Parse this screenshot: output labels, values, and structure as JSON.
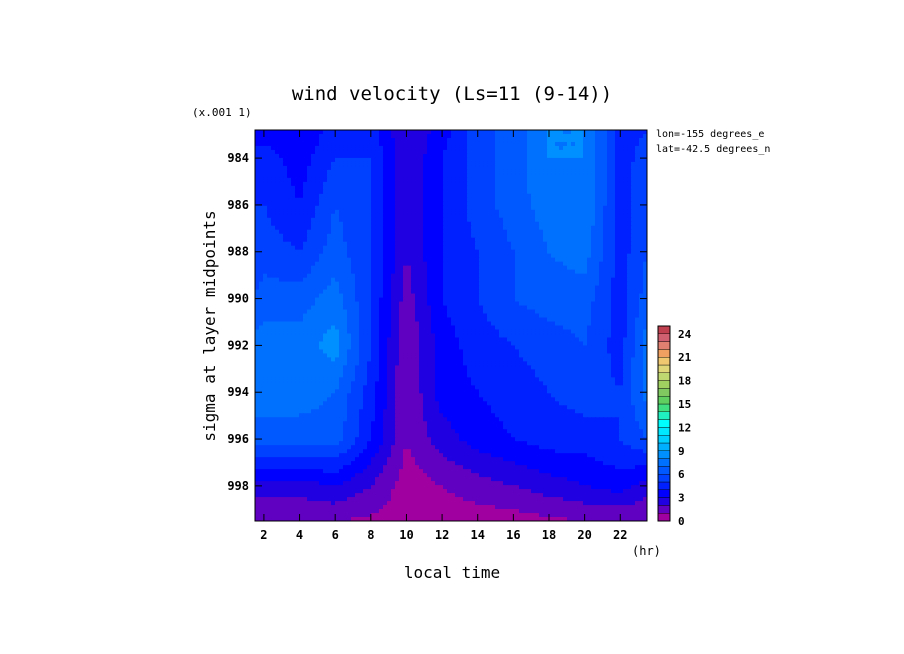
{
  "chart_data": {
    "type": "heatmap",
    "title": "wind velocity (Ls=11 (9-14))",
    "xlabel": "local time",
    "ylabel": "sigma at layer midpoints",
    "x_unit": "(hr)",
    "y_scale_note": "(x.001 1)",
    "annotations": [
      "lon=-155 degrees_e",
      "lat=-42.5 degrees_n"
    ],
    "xlim": [
      1.5,
      23.5
    ],
    "ylim": [
      999.5,
      982.8
    ],
    "x_ticks": [
      2,
      4,
      6,
      8,
      10,
      12,
      14,
      16,
      18,
      20,
      22
    ],
    "y_ticks": [
      984,
      986,
      988,
      990,
      992,
      994,
      996,
      998
    ],
    "x": [
      1.5,
      2,
      4,
      6,
      8,
      10,
      12,
      14,
      16,
      18,
      20,
      22,
      23.5
    ],
    "y": [
      982.8,
      984,
      986,
      988,
      990,
      992,
      994,
      996,
      998,
      999.5
    ],
    "z": [
      [
        3.5,
        3.5,
        3.0,
        4.5,
        4.5,
        2.0,
        3.5,
        5.5,
        6.5,
        8.0,
        8.0,
        4.5,
        5.0
      ],
      [
        4.5,
        4.5,
        3.5,
        5.0,
        5.0,
        2.0,
        4.0,
        5.5,
        6.5,
        8.0,
        8.0,
        4.5,
        5.5
      ],
      [
        5.0,
        5.0,
        4.0,
        6.0,
        5.0,
        2.0,
        4.0,
        5.5,
        6.5,
        7.5,
        8.0,
        4.5,
        6.0
      ],
      [
        5.5,
        5.5,
        5.0,
        6.5,
        5.0,
        2.0,
        4.0,
        5.0,
        6.0,
        7.0,
        7.5,
        4.5,
        6.0
      ],
      [
        6.0,
        6.5,
        6.5,
        7.5,
        5.0,
        1.5,
        4.0,
        5.0,
        6.0,
        6.5,
        6.5,
        4.5,
        6.5
      ],
      [
        7.5,
        7.5,
        7.5,
        8.5,
        5.0,
        1.0,
        3.5,
        4.5,
        5.0,
        5.5,
        6.0,
        4.5,
        7.5
      ],
      [
        7.5,
        7.5,
        7.5,
        7.0,
        4.5,
        1.0,
        3.5,
        4.0,
        4.5,
        5.0,
        5.5,
        5.0,
        7.5
      ],
      [
        6.5,
        6.5,
        6.5,
        6.5,
        4.0,
        1.0,
        2.5,
        3.5,
        4.0,
        4.5,
        4.5,
        5.0,
        6.0
      ],
      [
        2.5,
        2.5,
        2.5,
        3.0,
        2.0,
        0.5,
        1.0,
        1.5,
        2.0,
        2.5,
        3.0,
        3.5,
        2.5
      ],
      [
        1.0,
        1.0,
        1.0,
        1.0,
        0.8,
        0.5,
        0.5,
        0.5,
        0.5,
        0.8,
        1.0,
        1.0,
        1.0
      ]
    ],
    "levels": [
      0,
      1,
      2,
      3,
      4,
      5,
      6,
      7,
      8,
      9,
      10,
      11,
      12,
      13,
      14,
      15,
      16,
      17,
      18,
      19,
      20,
      21,
      22,
      23,
      24,
      25
    ],
    "colorbar_ticks": [
      0,
      3,
      6,
      9,
      12,
      15,
      18,
      21,
      24
    ],
    "colors": [
      "#a000a0",
      "#6000c0",
      "#2000e0",
      "#0000ff",
      "#0020ff",
      "#0040ff",
      "#0058ff",
      "#0070ff",
      "#0090ff",
      "#00b0ff",
      "#00d0ff",
      "#00e8ff",
      "#00ffff",
      "#20f0c0",
      "#40e080",
      "#60d060",
      "#80c860",
      "#a0d060",
      "#c0d870",
      "#e0d878",
      "#f0c870",
      "#f0a060",
      "#e08070",
      "#d06070",
      "#c04050"
    ],
    "grid": false,
    "colorbar": true
  }
}
